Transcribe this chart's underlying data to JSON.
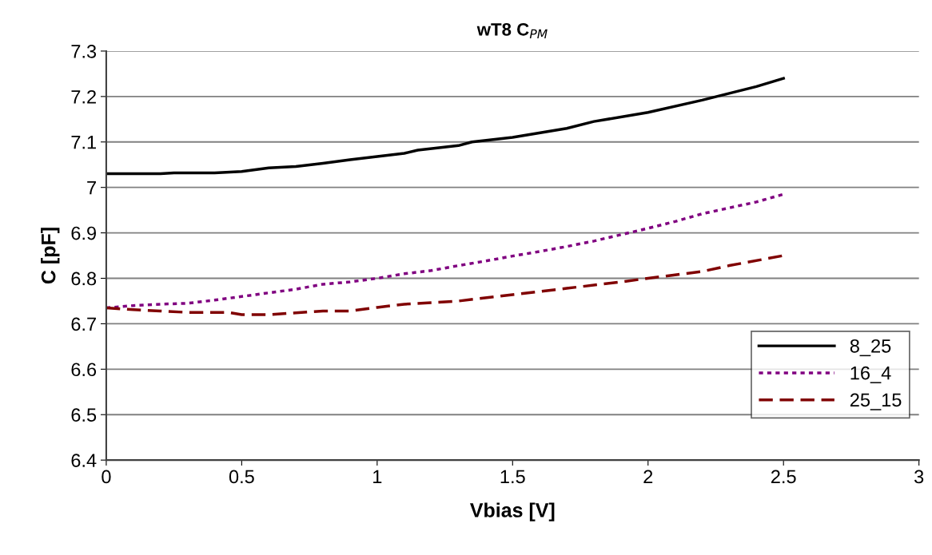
{
  "chart_data": {
    "type": "line",
    "title": "wT8 C$_{PM}$",
    "xlabel": "Vbias [V]",
    "ylabel": "C [pF]",
    "xlim": [
      0,
      3
    ],
    "xticks": [
      0,
      0.5,
      1,
      1.5,
      2,
      2.5,
      3
    ],
    "ylim": [
      6.4,
      7.3
    ],
    "yticks": [
      6.4,
      6.5,
      6.6,
      6.7,
      6.8,
      6.9,
      7,
      7.1,
      7.2,
      7.3
    ],
    "grid": "y",
    "legend": "bottom right",
    "marker": "none",
    "series": [
      {
        "name": "8_25",
        "color": "#000000",
        "line_style": "solid",
        "x": [
          0,
          0.2,
          0.25,
          0.4,
          0.5,
          0.6,
          0.7,
          0.8,
          0.9,
          1.0,
          1.1,
          1.15,
          1.3,
          1.35,
          1.5,
          1.7,
          1.8,
          2.0,
          2.2,
          2.4,
          2.5
        ],
        "values": [
          7.03,
          7.03,
          7.032,
          7.032,
          7.035,
          7.043,
          7.046,
          7.053,
          7.061,
          7.068,
          7.075,
          7.082,
          7.092,
          7.1,
          7.11,
          7.13,
          7.145,
          7.165,
          7.192,
          7.222,
          7.24
        ]
      },
      {
        "name": "16_4",
        "color": "#800080",
        "line_style": "dotted",
        "x": [
          0,
          0.1,
          0.2,
          0.3,
          0.4,
          0.5,
          0.6,
          0.7,
          0.8,
          0.9,
          1.0,
          1.1,
          1.2,
          1.3,
          1.4,
          1.5,
          1.6,
          1.7,
          1.8,
          1.9,
          2.0,
          2.1,
          2.2,
          2.3,
          2.4,
          2.5
        ],
        "values": [
          6.735,
          6.74,
          6.743,
          6.745,
          6.752,
          6.76,
          6.768,
          6.776,
          6.787,
          6.792,
          6.8,
          6.81,
          6.817,
          6.828,
          6.838,
          6.849,
          6.859,
          6.87,
          6.882,
          6.896,
          6.91,
          6.925,
          6.942,
          6.955,
          6.968,
          6.985
        ]
      },
      {
        "name": "25_15",
        "color": "#800000",
        "line_style": "dashed",
        "x": [
          0,
          0.1,
          0.2,
          0.3,
          0.4,
          0.45,
          0.5,
          0.6,
          0.7,
          0.8,
          0.9,
          1.0,
          1.1,
          1.3,
          1.5,
          1.7,
          1.9,
          2.0,
          2.2,
          2.3,
          2.5
        ],
        "values": [
          6.735,
          6.731,
          6.728,
          6.725,
          6.725,
          6.725,
          6.72,
          6.72,
          6.724,
          6.728,
          6.728,
          6.736,
          6.743,
          6.75,
          6.764,
          6.778,
          6.792,
          6.8,
          6.815,
          6.828,
          6.85
        ]
      }
    ]
  }
}
